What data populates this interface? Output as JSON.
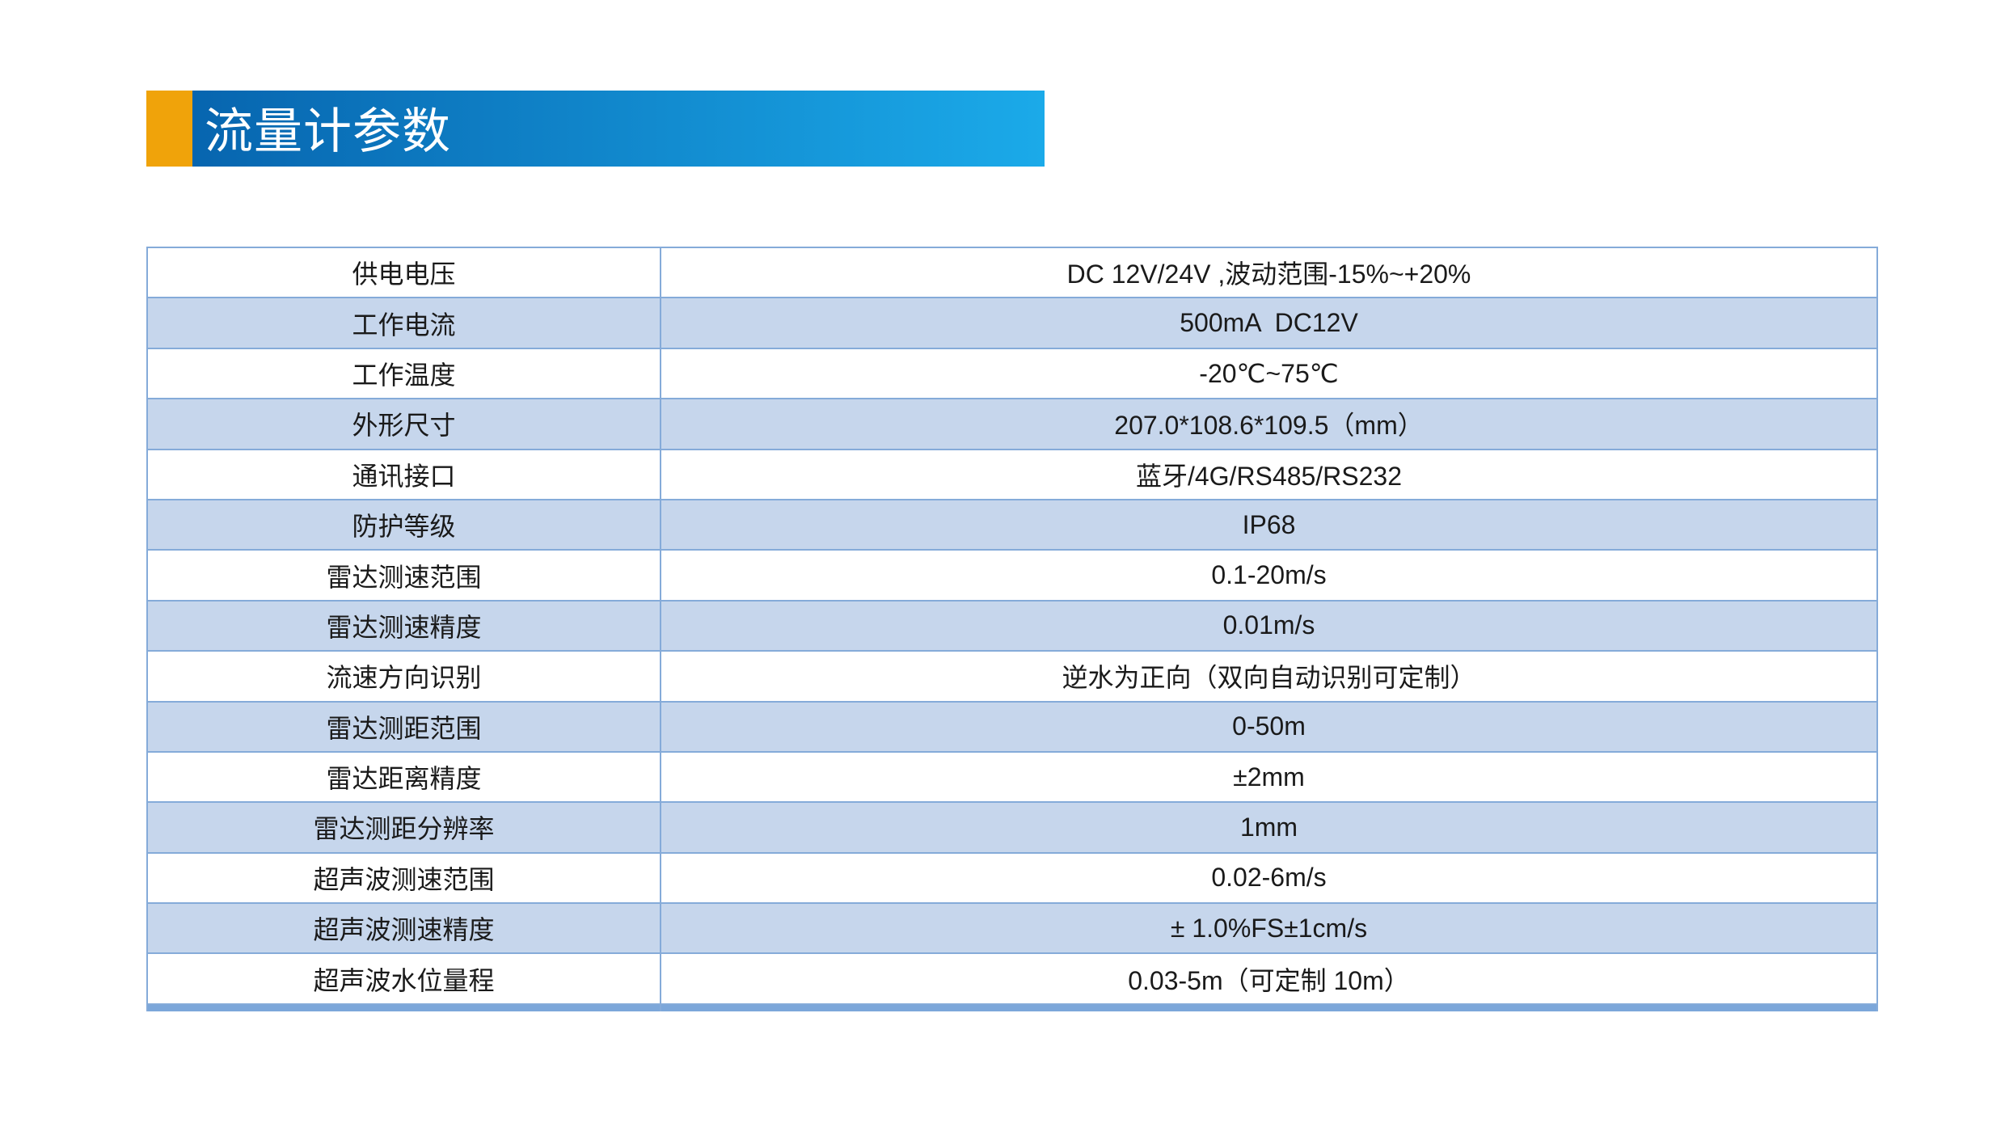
{
  "header": {
    "title": "流量计参数",
    "accent_color": "#f0a30a",
    "bar_gradient_left": "#0765af",
    "bar_gradient_right": "#1baae9",
    "text_color": "#ffffff"
  },
  "table": {
    "band_color": "#c6d6ec",
    "border_color": "#85abd9",
    "bottom_bar_color": "#7ca7da",
    "text_color": "#1a1a1a",
    "rows": [
      {
        "label": "供电电压",
        "value": "DC 12V/24V ,波动范围-15%~+20%"
      },
      {
        "label": "工作电流",
        "value": "500mA  DC12V"
      },
      {
        "label": "工作温度",
        "value": "-20℃~75℃"
      },
      {
        "label": "外形尺寸",
        "value": "207.0*108.6*109.5（mm）"
      },
      {
        "label": "通讯接口",
        "value": "蓝牙/4G/RS485/RS232"
      },
      {
        "label": "防护等级",
        "value": "IP68"
      },
      {
        "label": "雷达测速范围",
        "value": "0.1-20m/s"
      },
      {
        "label": "雷达测速精度",
        "value": "0.01m/s"
      },
      {
        "label": "流速方向识别",
        "value": "逆水为正向（双向自动识别可定制）"
      },
      {
        "label": "雷达测距范围",
        "value": "0-50m"
      },
      {
        "label": "雷达距离精度",
        "value": "±2mm"
      },
      {
        "label": "雷达测距分辨率",
        "value": "1mm"
      },
      {
        "label": "超声波测速范围",
        "value": "0.02-6m/s"
      },
      {
        "label": "超声波测速精度",
        "value": "± 1.0%FS±1cm/s"
      },
      {
        "label": "超声波水位量程",
        "value": "0.03-5m（可定制 10m）"
      }
    ]
  }
}
